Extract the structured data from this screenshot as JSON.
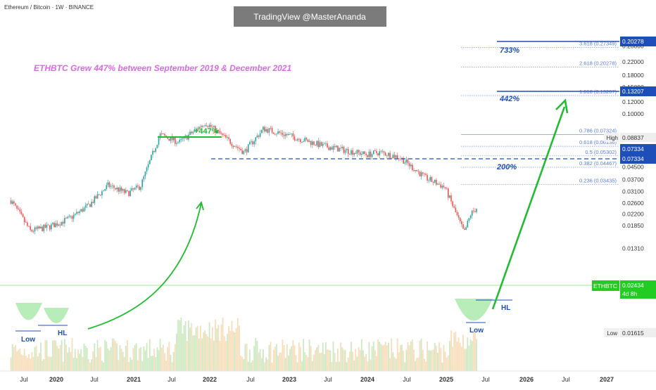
{
  "header": {
    "symbol_line": "Ethereum / Bitcoin · 1W · BINANCE"
  },
  "watermark": {
    "text": "TradingView @MasterAnanda"
  },
  "annotations": {
    "headline": "ETHBTC Grew 447% between September 2019 & December 2021",
    "gain_label": "+447%",
    "pct_733": "733%",
    "pct_442": "442%",
    "pct_200": "200%",
    "low_left": "Low",
    "hl_left": "HL",
    "low_right": "Low",
    "hl_right": "HL"
  },
  "price_scale": {
    "ticks": [
      "0.28000",
      "0.22000",
      "0.18000",
      "0.15000",
      "0.12000",
      "0.10000",
      "0.07000",
      "0.05500",
      "0.04500",
      "0.03700",
      "0.03100",
      "0.02600",
      "0.02200",
      "0.01850",
      "0.01310"
    ],
    "tick_values": [
      0.28,
      0.22,
      0.18,
      0.15,
      0.12,
      0.1,
      0.07,
      0.055,
      0.045,
      0.037,
      0.031,
      0.026,
      0.022,
      0.0185,
      0.0131
    ],
    "high_label": "High",
    "high_value": "0.08837",
    "low_label": "Low",
    "low_value": "0.01615",
    "fib_tag_1": "0.20278",
    "fib_tag_2": "0.13207",
    "level_tag_1": "0.07334",
    "level_tag_2": "0.07334",
    "ticker_label": "ETHBTC",
    "last_price": "0.02434",
    "countdown": "4d 8h"
  },
  "time_axis": {
    "labels": [
      "Jul",
      "2020",
      "Jul",
      "2021",
      "Jul",
      "2022",
      "Jul",
      "2023",
      "Jul",
      "2024",
      "Jul",
      "2025",
      "Jul",
      "2026",
      "Jul",
      "2027"
    ]
  },
  "fib_levels": [
    {
      "label": "3.618 (0.27349)",
      "value": 0.27349
    },
    {
      "label": "2.618 (0.20278)",
      "value": 0.20278
    },
    {
      "label": "1.618 (0.13207)",
      "value": 0.13207
    },
    {
      "label": "0.786 (0.07324)",
      "value": 0.07324
    },
    {
      "label": "0.618 (0.06136)",
      "value": 0.06136
    },
    {
      "label": "0.5 (0.05302)",
      "value": 0.05302
    },
    {
      "label": "0.382 (0.04467)",
      "value": 0.04467
    },
    {
      "label": "0.236 (0.03435)",
      "value": 0.03435
    }
  ],
  "colors": {
    "up": "#26a69a",
    "down": "#ef5350",
    "projection": "#22bb33",
    "fib": "#5b7bd5",
    "level_blue": "#1e4fb8",
    "headline": "#d56de0",
    "last_price": "#22cc22",
    "volume_green": "#b8e0a8",
    "volume_orange": "#f4cf9c"
  },
  "chart_data": {
    "type": "candlestick",
    "symbol": "ETHBTC",
    "scale": "log",
    "ylim": [
      0.0118,
      0.3
    ],
    "x": [
      "2019-06",
      "2019-09",
      "2019-12",
      "2020-03",
      "2020-06",
      "2020-09",
      "2020-12",
      "2021-02",
      "2021-05",
      "2021-08",
      "2021-12",
      "2022-03",
      "2022-06",
      "2022-09",
      "2023-01",
      "2023-06",
      "2024-01",
      "2024-03",
      "2024-06",
      "2024-10",
      "2025-01",
      "2025-04",
      "2025-05",
      "2025-06"
    ],
    "y": [
      0.027,
      0.017,
      0.0182,
      0.0205,
      0.025,
      0.034,
      0.03,
      0.0335,
      0.073,
      0.065,
      0.088,
      0.07,
      0.056,
      0.08,
      0.072,
      0.062,
      0.054,
      0.056,
      0.052,
      0.038,
      0.033,
      0.0165,
      0.022,
      0.0243
    ],
    "key_levels": {
      "high": 0.08837,
      "low": 0.01615,
      "resistance": 0.07334,
      "last": 0.02434
    },
    "projection": {
      "from": [
        "2025-06",
        0.0185
      ],
      "to": [
        "2026-02",
        0.125
      ]
    }
  }
}
